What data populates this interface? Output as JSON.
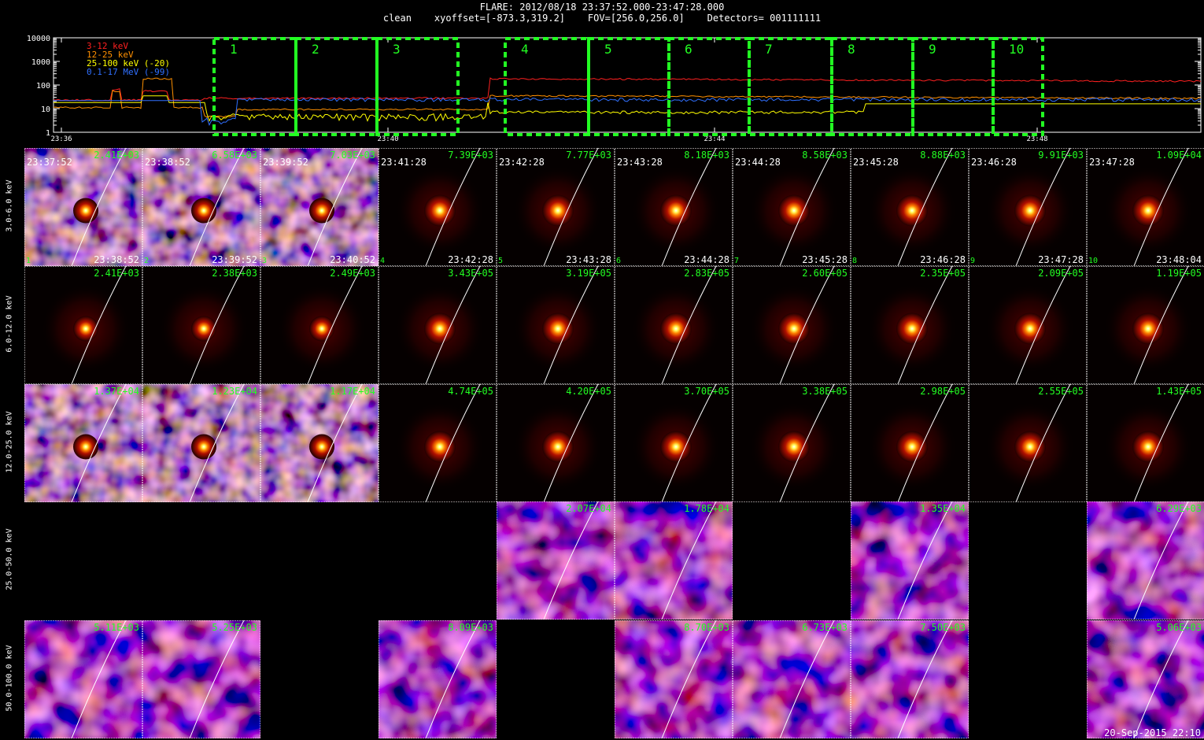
{
  "header": {
    "line1": "FLARE: 2012/08/18 23:37:52.000-23:47:28.000",
    "line2": "clean    xyoffset=[-873.3,319.2]    FOV=[256.0,256.0]    Detectors= 001111111"
  },
  "lightcurve": {
    "yticks": [
      "10000",
      "1000",
      "100",
      "10",
      "1"
    ],
    "xticks": [
      "23:36",
      "23:40",
      "23:44",
      "23:48"
    ],
    "legend": [
      {
        "label": "3-12 keV",
        "color": "#ff2020"
      },
      {
        "label": "12-25 keV",
        "color": "#ff9000"
      },
      {
        "label": "25-100 keV (-20)",
        "color": "#ffff00"
      },
      {
        "label": "0.1-17 MeV (-99)",
        "color": "#3070ff"
      }
    ],
    "intervals": [
      "1",
      "2",
      "3",
      "4",
      "5",
      "6",
      "7",
      "8",
      "9",
      "10"
    ],
    "box_color": "#22ff22"
  },
  "bands": [
    "3.0-6.0 keV",
    "6.0-12.0 keV",
    "12.0-25.0 keV",
    "25.0-50.0 keV",
    "50.0-100.0 keV"
  ],
  "start_times": [
    "23:37:52",
    "23:38:52",
    "23:39:52",
    "23:41:28",
    "23:42:28",
    "23:43:28",
    "23:44:28",
    "23:45:28",
    "23:46:28",
    "23:47:28"
  ],
  "end_times": [
    "23:38:52",
    "23:39:52",
    "23:40:52",
    "23:42:28",
    "23:43:28",
    "23:44:28",
    "23:45:28",
    "23:46:28",
    "23:47:28",
    "23:48:04"
  ],
  "peaks": [
    [
      "2.41E+03",
      "6.58E+03",
      "7.03E+03",
      "7.39E+03",
      "7.77E+03",
      "8.18E+03",
      "8.58E+03",
      "8.88E+03",
      "9.91E+03",
      "1.09E+04"
    ],
    [
      "2.41E+03",
      "2.38E+03",
      "2.49E+03",
      "3.43E+05",
      "3.19E+05",
      "2.83E+05",
      "2.60E+05",
      "2.35E+05",
      "2.09E+05",
      "1.19E+05"
    ],
    [
      "1.37E+04",
      "1.23E+04",
      "1.17E+04",
      "4.74E+05",
      "4.20E+05",
      "3.70E+05",
      "3.38E+05",
      "2.98E+05",
      "2.55E+05",
      "1.43E+05"
    ],
    [
      "",
      "",
      "",
      "",
      "2.07E+04",
      "1.78E+04",
      "",
      "1.35E+04",
      "",
      "6.29E+03"
    ],
    [
      "5.11E+03",
      "5.25E+03",
      "",
      "8.09E+03",
      "",
      "8.70E+03",
      "6.73E+03",
      "7.50E+03",
      "",
      "5.06E+03"
    ]
  ],
  "footer_stamp": "20-Sep-2015 22:10"
}
